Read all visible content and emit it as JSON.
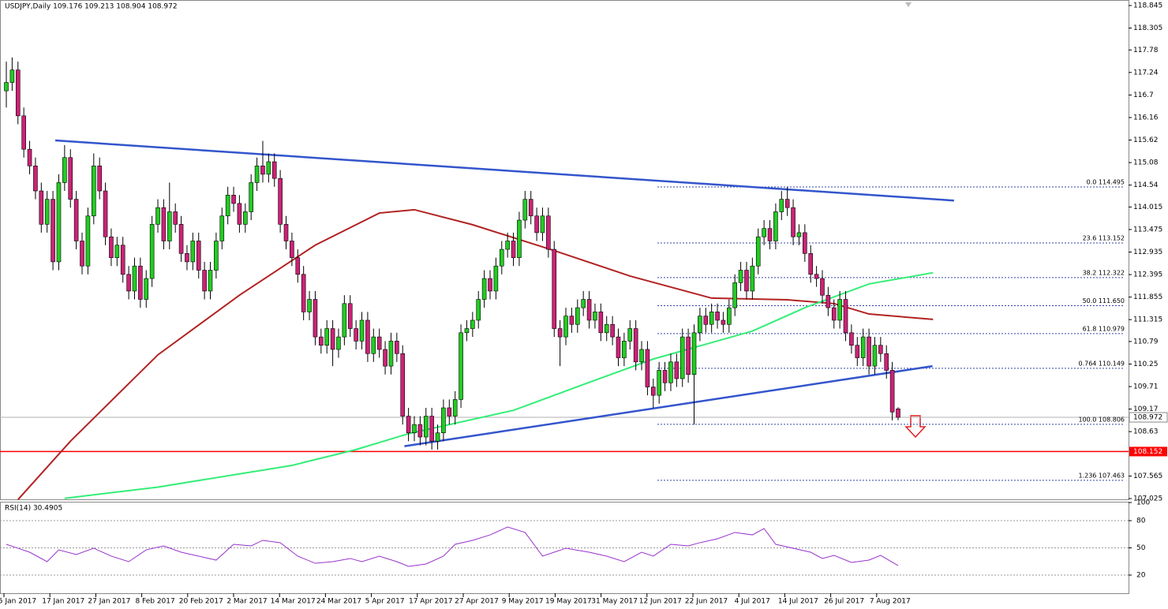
{
  "header": "USDJPY,Daily  109.176 109.213 108.904 108.972",
  "chart_data": [
    {
      "type": "candlestick",
      "up_color": "#22cc22",
      "down_color": "#cc2277",
      "ylim": [
        107.025,
        118.845
      ],
      "yticks": [
        118.845,
        118.305,
        117.78,
        117.24,
        116.7,
        116.16,
        115.62,
        115.08,
        114.54,
        114.015,
        113.475,
        112.935,
        112.395,
        111.855,
        111.315,
        110.79,
        110.25,
        109.71,
        109.17,
        108.63,
        107.565,
        107.025
      ],
      "x_labels": [
        "5 Jan 2017",
        "17 Jan 2017",
        "27 Jan 2017",
        "8 Feb 2017",
        "20 Feb 2017",
        "2 Mar 2017",
        "14 Mar 2017",
        "24 Mar 2017",
        "5 Apr 2017",
        "17 Apr 2017",
        "27 Apr 2017",
        "9 May 2017",
        "19 May 2017",
        "31 May 2017",
        "12 Jun 2017",
        "22 Jun 2017",
        "4 Jul 2017",
        "14 Jul 2017",
        "26 Jul 2017",
        "7 Aug 2017"
      ],
      "candles": [
        [
          116.8,
          117.5,
          116.4,
          117.0
        ],
        [
          117.0,
          117.6,
          116.8,
          117.3
        ],
        [
          117.3,
          117.5,
          116.0,
          116.2
        ],
        [
          116.2,
          116.4,
          115.2,
          115.4
        ],
        [
          115.4,
          115.6,
          114.8,
          115.0
        ],
        [
          115.0,
          115.2,
          114.2,
          114.4
        ],
        [
          114.4,
          114.6,
          113.4,
          113.6
        ],
        [
          113.6,
          114.4,
          113.4,
          114.2
        ],
        [
          114.2,
          114.4,
          112.5,
          112.7
        ],
        [
          112.7,
          114.8,
          112.5,
          114.6
        ],
        [
          114.6,
          115.5,
          114.4,
          115.2
        ],
        [
          115.2,
          115.4,
          114.0,
          114.2
        ],
        [
          114.2,
          114.4,
          113.0,
          113.2
        ],
        [
          113.2,
          113.4,
          112.4,
          112.6
        ],
        [
          112.6,
          114.0,
          112.4,
          113.8
        ],
        [
          113.8,
          115.3,
          113.6,
          115.0
        ],
        [
          115.0,
          115.2,
          114.2,
          114.4
        ],
        [
          114.4,
          114.6,
          113.1,
          113.3
        ],
        [
          113.3,
          113.5,
          112.6,
          112.8
        ],
        [
          112.8,
          113.3,
          112.6,
          113.1
        ],
        [
          113.1,
          113.3,
          112.2,
          112.4
        ],
        [
          112.4,
          112.6,
          111.8,
          112.0
        ],
        [
          112.0,
          112.8,
          111.8,
          112.6
        ],
        [
          112.6,
          112.8,
          111.6,
          111.8
        ],
        [
          111.8,
          112.5,
          111.6,
          112.3
        ],
        [
          112.3,
          113.8,
          112.1,
          113.6
        ],
        [
          113.6,
          114.2,
          113.4,
          114.0
        ],
        [
          114.0,
          114.2,
          113.0,
          113.2
        ],
        [
          113.2,
          114.6,
          113.0,
          113.9
        ],
        [
          113.9,
          114.1,
          113.4,
          113.6
        ],
        [
          113.6,
          113.8,
          112.7,
          112.9
        ],
        [
          112.9,
          113.1,
          112.5,
          112.7
        ],
        [
          112.7,
          113.4,
          112.5,
          113.2
        ],
        [
          113.2,
          113.4,
          112.3,
          112.5
        ],
        [
          112.5,
          112.7,
          111.8,
          112.0
        ],
        [
          112.0,
          112.7,
          111.8,
          112.5
        ],
        [
          112.5,
          113.4,
          112.3,
          113.2
        ],
        [
          113.2,
          114.0,
          113.0,
          113.8
        ],
        [
          113.8,
          114.5,
          113.6,
          114.3
        ],
        [
          114.3,
          114.5,
          113.9,
          114.1
        ],
        [
          114.1,
          114.3,
          113.4,
          113.6
        ],
        [
          113.6,
          114.1,
          113.4,
          113.9
        ],
        [
          113.9,
          114.8,
          113.7,
          114.6
        ],
        [
          114.6,
          115.2,
          114.4,
          115.0
        ],
        [
          115.0,
          115.6,
          114.6,
          114.8
        ],
        [
          114.8,
          115.3,
          114.6,
          115.1
        ],
        [
          115.1,
          115.3,
          114.5,
          114.7
        ],
        [
          114.7,
          114.9,
          113.4,
          113.6
        ],
        [
          113.6,
          113.8,
          113.0,
          113.2
        ],
        [
          113.2,
          113.4,
          112.6,
          112.8
        ],
        [
          112.8,
          113.0,
          112.2,
          112.4
        ],
        [
          112.4,
          112.6,
          111.3,
          111.5
        ],
        [
          111.5,
          112.0,
          111.3,
          111.8
        ],
        [
          111.8,
          112.0,
          110.7,
          110.9
        ],
        [
          110.9,
          111.1,
          110.5,
          110.7
        ],
        [
          110.7,
          111.3,
          110.5,
          111.1
        ],
        [
          111.1,
          111.3,
          110.2,
          110.6
        ],
        [
          110.6,
          111.1,
          110.4,
          110.9
        ],
        [
          110.9,
          111.9,
          110.7,
          111.7
        ],
        [
          111.7,
          111.9,
          110.9,
          111.1
        ],
        [
          111.1,
          111.3,
          110.6,
          110.8
        ],
        [
          110.8,
          111.5,
          110.6,
          111.3
        ],
        [
          111.3,
          111.5,
          110.3,
          110.5
        ],
        [
          110.5,
          111.1,
          110.3,
          110.9
        ],
        [
          110.9,
          111.1,
          110.4,
          110.6
        ],
        [
          110.6,
          110.8,
          110.0,
          110.2
        ],
        [
          110.2,
          111.0,
          110.0,
          110.8
        ],
        [
          110.8,
          111.0,
          110.3,
          110.5
        ],
        [
          110.5,
          110.7,
          108.8,
          109.0
        ],
        [
          109.0,
          109.2,
          108.4,
          108.6
        ],
        [
          108.6,
          109.0,
          108.4,
          108.8
        ],
        [
          108.8,
          109.0,
          108.3,
          108.5
        ],
        [
          108.5,
          109.2,
          108.3,
          109.0
        ],
        [
          109.0,
          109.2,
          108.2,
          108.4
        ],
        [
          108.4,
          108.8,
          108.2,
          108.6
        ],
        [
          108.6,
          109.4,
          108.4,
          109.2
        ],
        [
          109.2,
          109.4,
          108.8,
          109.0
        ],
        [
          109.0,
          109.6,
          108.8,
          109.4
        ],
        [
          109.4,
          111.2,
          109.2,
          111.0
        ],
        [
          111.0,
          111.3,
          110.8,
          111.1
        ],
        [
          111.1,
          111.5,
          110.9,
          111.3
        ],
        [
          111.3,
          112.0,
          111.1,
          111.8
        ],
        [
          111.8,
          112.5,
          111.6,
          112.3
        ],
        [
          112.3,
          112.5,
          111.8,
          112.0
        ],
        [
          112.0,
          112.8,
          111.8,
          112.6
        ],
        [
          112.6,
          113.2,
          112.4,
          113.0
        ],
        [
          113.0,
          113.4,
          112.8,
          113.2
        ],
        [
          113.2,
          113.4,
          112.6,
          112.8
        ],
        [
          112.8,
          113.9,
          112.6,
          113.7
        ],
        [
          113.7,
          114.4,
          113.5,
          114.2
        ],
        [
          114.2,
          114.4,
          113.6,
          113.8
        ],
        [
          113.8,
          114.0,
          113.2,
          113.4
        ],
        [
          113.4,
          114.0,
          113.2,
          113.8
        ],
        [
          113.8,
          114.0,
          112.8,
          113.0
        ],
        [
          113.0,
          113.2,
          110.9,
          111.1
        ],
        [
          111.1,
          111.3,
          110.2,
          110.9
        ],
        [
          110.9,
          111.6,
          110.7,
          111.4
        ],
        [
          111.4,
          111.6,
          111.0,
          111.2
        ],
        [
          111.2,
          111.8,
          111.0,
          111.6
        ],
        [
          111.6,
          112.0,
          111.4,
          111.8
        ],
        [
          111.8,
          112.0,
          111.1,
          111.3
        ],
        [
          111.3,
          111.7,
          111.1,
          111.5
        ],
        [
          111.5,
          111.7,
          110.8,
          111.0
        ],
        [
          111.0,
          111.4,
          110.8,
          111.2
        ],
        [
          111.2,
          111.4,
          110.7,
          110.9
        ],
        [
          110.9,
          111.1,
          110.2,
          110.4
        ],
        [
          110.4,
          111.0,
          110.2,
          110.8
        ],
        [
          110.8,
          111.3,
          110.6,
          111.1
        ],
        [
          111.1,
          111.3,
          110.1,
          110.3
        ],
        [
          110.3,
          110.8,
          110.1,
          110.6
        ],
        [
          110.6,
          110.8,
          109.5,
          109.7
        ],
        [
          109.7,
          109.9,
          109.2,
          109.5
        ],
        [
          109.5,
          110.3,
          109.3,
          110.1
        ],
        [
          110.1,
          110.3,
          109.6,
          109.8
        ],
        [
          109.8,
          110.5,
          109.6,
          110.3
        ],
        [
          110.3,
          110.5,
          109.7,
          109.9
        ],
        [
          109.9,
          111.1,
          109.7,
          110.9
        ],
        [
          110.9,
          111.1,
          109.8,
          110.0
        ],
        [
          110.0,
          111.2,
          108.8,
          111.0
        ],
        [
          111.0,
          111.6,
          110.8,
          111.4
        ],
        [
          111.4,
          111.6,
          111.0,
          111.2
        ],
        [
          111.2,
          111.7,
          111.0,
          111.5
        ],
        [
          111.5,
          111.7,
          111.1,
          111.3
        ],
        [
          111.3,
          111.5,
          111.0,
          111.2
        ],
        [
          111.2,
          111.8,
          111.0,
          111.6
        ],
        [
          111.6,
          112.4,
          111.4,
          112.2
        ],
        [
          112.2,
          112.7,
          112.0,
          112.5
        ],
        [
          112.5,
          112.7,
          111.8,
          112.0
        ],
        [
          112.0,
          112.8,
          111.8,
          112.6
        ],
        [
          112.6,
          113.5,
          112.4,
          113.3
        ],
        [
          113.3,
          113.7,
          113.1,
          113.5
        ],
        [
          113.5,
          113.7,
          113.0,
          113.2
        ],
        [
          113.2,
          114.1,
          113.0,
          113.9
        ],
        [
          113.9,
          114.4,
          113.7,
          114.2
        ],
        [
          114.2,
          114.5,
          113.8,
          114.0
        ],
        [
          114.0,
          114.2,
          113.1,
          113.3
        ],
        [
          113.3,
          113.6,
          113.1,
          113.4
        ],
        [
          113.4,
          113.6,
          112.7,
          112.9
        ],
        [
          112.9,
          113.1,
          112.2,
          112.4
        ],
        [
          112.4,
          112.6,
          112.1,
          112.3
        ],
        [
          112.3,
          112.5,
          111.7,
          111.9
        ],
        [
          111.9,
          112.1,
          111.4,
          111.6
        ],
        [
          111.6,
          111.8,
          111.1,
          111.3
        ],
        [
          111.3,
          112.0,
          111.1,
          111.8
        ],
        [
          111.8,
          112.0,
          110.8,
          111.0
        ],
        [
          111.0,
          111.2,
          110.5,
          110.7
        ],
        [
          110.7,
          110.9,
          110.2,
          110.4
        ],
        [
          110.4,
          111.1,
          110.2,
          110.9
        ],
        [
          110.9,
          111.1,
          110.0,
          110.2
        ],
        [
          110.2,
          110.9,
          110.0,
          110.7
        ],
        [
          110.7,
          110.9,
          110.3,
          110.5
        ],
        [
          110.5,
          110.7,
          109.9,
          110.1
        ],
        [
          110.1,
          110.3,
          108.9,
          109.1
        ],
        [
          109.176,
          109.213,
          108.904,
          108.972
        ]
      ],
      "series": [
        {
          "color": "#b22222",
          "x": [
            2,
            11,
            26,
            40,
            53,
            64,
            70,
            80,
            94,
            107,
            121,
            134,
            142,
            148,
            159
          ],
          "values": [
            107.0,
            108.4,
            110.47,
            111.9,
            113.1,
            113.87,
            113.95,
            113.59,
            112.97,
            112.36,
            111.83,
            111.79,
            111.7,
            111.45,
            111.32
          ]
        },
        {
          "color": "#33ee77",
          "x": [
            10,
            26,
            49,
            60,
            69,
            87,
            100,
            111,
            128,
            137,
            148,
            159
          ],
          "values": [
            107.03,
            107.3,
            107.82,
            108.2,
            108.58,
            109.14,
            109.81,
            110.37,
            111.04,
            111.6,
            112.17,
            112.44
          ]
        }
      ],
      "trendlines": [
        {
          "color": "#3355cc",
          "x": [
            8.4,
            162.6
          ],
          "values": [
            115.61,
            114.17
          ]
        },
        {
          "color": "#3355cc",
          "x": [
            68.3,
            158.9
          ],
          "values": [
            108.28,
            110.2
          ]
        }
      ],
      "fib_color": "#3344aa",
      "fib_levels": [
        {
          "value": 114.495,
          "label": "0.0 114.495"
        },
        {
          "value": 113.152,
          "label": "23.6 113.152"
        },
        {
          "value": 112.322,
          "label": "38.2 112.322"
        },
        {
          "value": 111.65,
          "label": "50.0 111.650"
        },
        {
          "value": 110.979,
          "label": "61.8 110.979"
        },
        {
          "value": 110.149,
          "label": "0.764 110.149"
        },
        {
          "value": 108.806,
          "label": "100.0 108.806"
        },
        {
          "value": 107.463,
          "label": "1.236 107.463"
        }
      ],
      "support": {
        "value": 108.152,
        "label": "108.152",
        "color": "#ff0000"
      },
      "current": {
        "value": 108.972,
        "label": "108.972",
        "color": "#b0b0b0"
      }
    },
    {
      "type": "line",
      "title": "RSI(14) 30.4905",
      "color": "#9933cc",
      "ylim": [
        0,
        100
      ],
      "yticks": [
        100,
        80,
        50,
        20
      ],
      "levels": [
        80,
        50,
        20
      ],
      "x": [
        0,
        2,
        4,
        7,
        9,
        12,
        15,
        18,
        21,
        24,
        27,
        30,
        33,
        36,
        39,
        42,
        44,
        47,
        50,
        53,
        56,
        59,
        61,
        64,
        67,
        69,
        72,
        75,
        77,
        80,
        83,
        86,
        89,
        92,
        94,
        96,
        100,
        103,
        106,
        109,
        111,
        114,
        117,
        119,
        122,
        125,
        128,
        130,
        132,
        135,
        138,
        140,
        142,
        145,
        148,
        150,
        153
      ],
      "values": [
        53.9,
        49.6,
        45.2,
        34.8,
        47.8,
        42.6,
        49.6,
        40.9,
        34.8,
        47.8,
        52.2,
        45.2,
        40.9,
        36.5,
        53.9,
        52.2,
        58.3,
        55.7,
        40.9,
        33,
        34.8,
        38.3,
        34.8,
        40.9,
        34.8,
        29.6,
        32.2,
        40.9,
        53.9,
        58.3,
        64.3,
        73,
        67,
        40.9,
        45.2,
        49.6,
        45.2,
        40.9,
        34.8,
        45.2,
        40.9,
        53.9,
        52.2,
        55.7,
        60,
        67,
        64.3,
        71.3,
        53.9,
        49.6,
        45.2,
        38.3,
        41.7,
        33.9,
        36.5,
        41.7,
        30.4905
      ]
    }
  ]
}
